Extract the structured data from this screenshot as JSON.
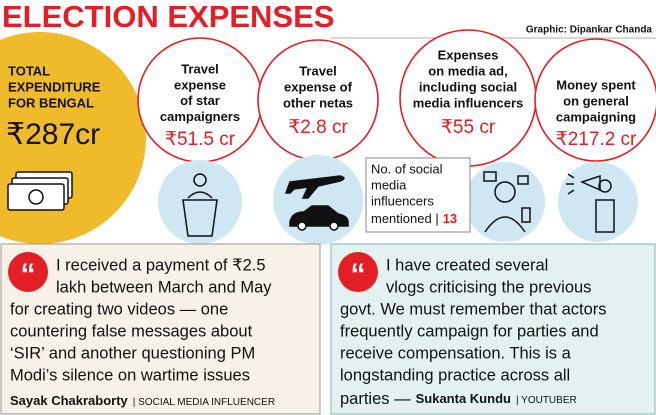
{
  "header": {
    "title": "ELECTION EXPENSES",
    "credit": "Graphic: Dipankar Chanda"
  },
  "total": {
    "label": [
      "TOTAL",
      "EXPENDITURE",
      "FOR BENGAL"
    ],
    "amount": "₹287cr"
  },
  "items": [
    {
      "label": [
        "Travel",
        "expense",
        "of star campaigners"
      ],
      "amount": "₹51.5 cr"
    },
    {
      "label": [
        "Travel",
        "expense of",
        "other netas"
      ],
      "amount": "₹2.8 cr"
    },
    {
      "label": [
        "Expenses",
        "on media ad,",
        "including social",
        "media influencers"
      ],
      "amount": "₹55 cr"
    },
    {
      "label": [
        "Money spent",
        "on general",
        "campaigning"
      ],
      "amount": "₹217.2 cr"
    }
  ],
  "influencers": {
    "label": [
      "No. of social",
      "media",
      "influencers",
      "mentioned |"
    ],
    "count": "13"
  },
  "quotes": [
    {
      "lines": [
        "I received a payment of ₹2.5",
        "lakh between March and May",
        "for creating two videos — one",
        "countering false messages about",
        "‘SIR’ and another questioning PM",
        "Modi’s silence on wartime issues"
      ],
      "author": "Sayak Chakraborty",
      "role": "| SOCIAL MEDIA INFLUENCER"
    },
    {
      "lines": [
        "I have created several",
        "vlogs criticising the previous",
        "govt. We must remember that actors",
        "frequently campaign for parties and",
        "receive compensation. This is a",
        "longstanding practice across all",
        "parties —"
      ],
      "author": "Sukanta Kundu",
      "role": "| YOUTUBER"
    }
  ]
}
